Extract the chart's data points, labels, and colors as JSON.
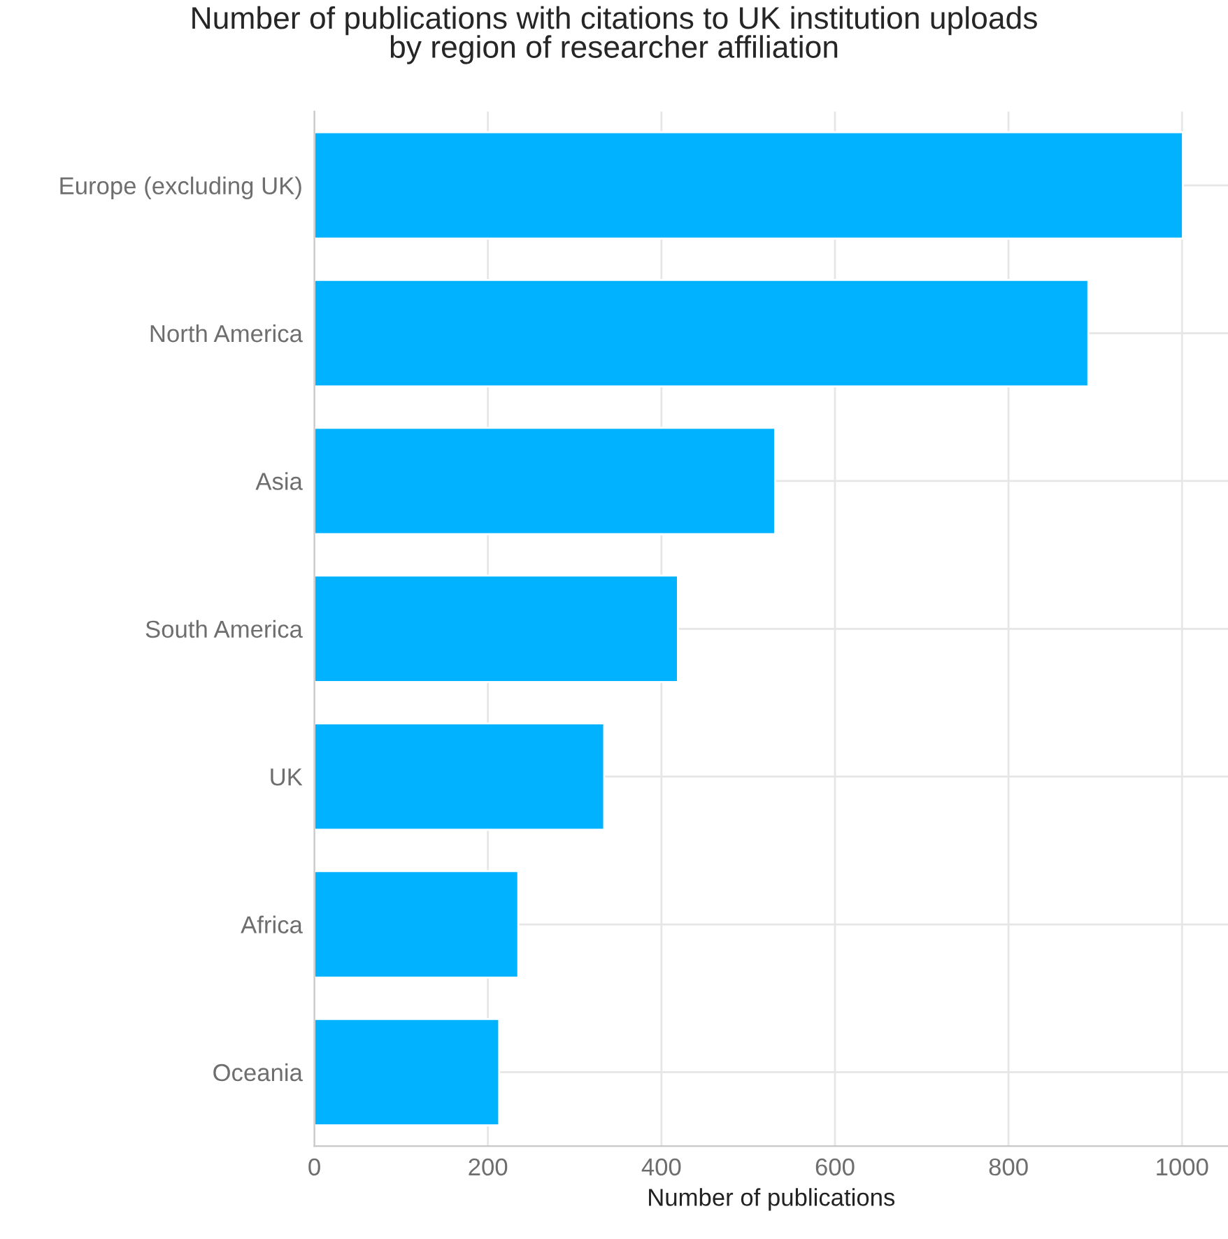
{
  "chart_data": {
    "type": "bar",
    "orientation": "horizontal",
    "title": "Number of publications with citations to UK institution uploads\nby region of researcher affiliation",
    "xlabel": "Number of publications",
    "categories": [
      "Europe (excluding UK)",
      "North America",
      "Asia",
      "South America",
      "UK",
      "Africa",
      "Oceania"
    ],
    "values": [
      1001,
      892,
      531,
      419,
      334,
      235,
      213
    ],
    "color": "#00b2ff",
    "xlim": [
      0,
      1053
    ],
    "xticks": [
      0,
      200,
      400,
      600,
      800,
      1000
    ],
    "grid": true
  }
}
